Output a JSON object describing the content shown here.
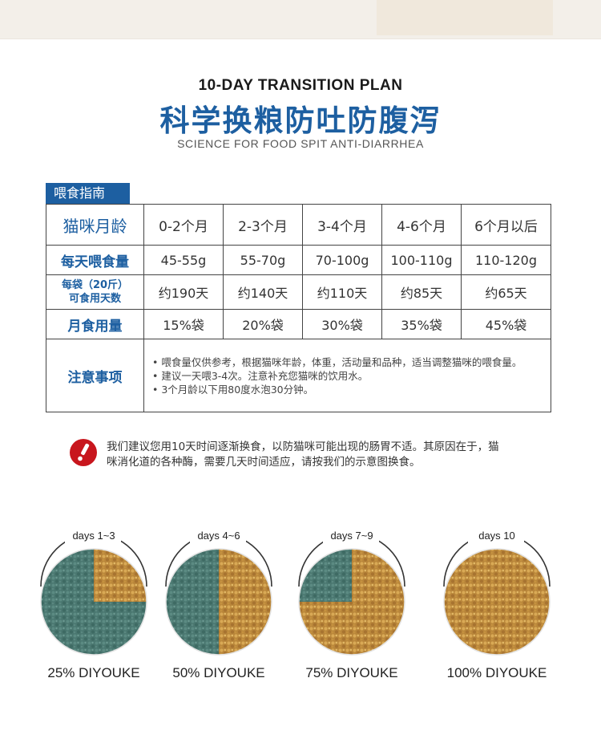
{
  "header": {
    "title_en": "10-DAY TRANSITION PLAN",
    "title_cn": "科学换粮防吐防腹泻",
    "subtitle": "SCIENCE FOR FOOD SPIT ANTI-DIARRHEA"
  },
  "guide": {
    "tab_label": "喂食指南",
    "age_label": "猫咪月龄",
    "ages": [
      "0-2个月",
      "2-3个月",
      "3-4个月",
      "4-6个月",
      "6个月以后"
    ],
    "daily_label": "每天喂食量",
    "daily": [
      "45-55g",
      "55-70g",
      "70-100g",
      "100-110g",
      "110-120g"
    ],
    "bag_label_line1": "每袋（20斤）",
    "bag_label_line2": "可食用天数",
    "bag_days": [
      "约190天",
      "约140天",
      "约110天",
      "约85天",
      "约65天"
    ],
    "monthly_label": "月食用量",
    "monthly": [
      "15%袋",
      "20%袋",
      "30%袋",
      "35%袋",
      "45%袋"
    ],
    "notes_label": "注意事项",
    "notes": [
      "• 喂食量仅供参考，根据猫咪年龄，体重，活动量和品种，适当调整猫咪的喂食量。",
      "• 建议一天喂3-4次。注意补充您猫咪的饮用水。",
      "• 3个月龄以下用80度水泡30分钟。"
    ]
  },
  "notice": {
    "icon": "exclamation-icon",
    "text": "我们建议您用10天时间逐渐换食，以防猫咪可能出现的肠胃不适。其原因在于，猫咪消化道的各种酶，需要几天时间适应，请按我们的示意图换食。"
  },
  "stages": [
    {
      "days": "days 1~3",
      "label": "25% DIYOUKE",
      "new_fraction": 0.25
    },
    {
      "days": "days 4~6",
      "label": "50% DIYOUKE",
      "new_fraction": 0.5
    },
    {
      "days": "days 7~9",
      "label": "75% DIYOUKE",
      "new_fraction": 0.75
    },
    {
      "days": "days 10",
      "label": "100% DIYOUKE",
      "new_fraction": 1.0
    }
  ],
  "colors": {
    "brand_blue": "#1d5fa1",
    "old_food": "#4d7b74",
    "new_food": "#c99a45",
    "alert_red": "#c8161d"
  }
}
